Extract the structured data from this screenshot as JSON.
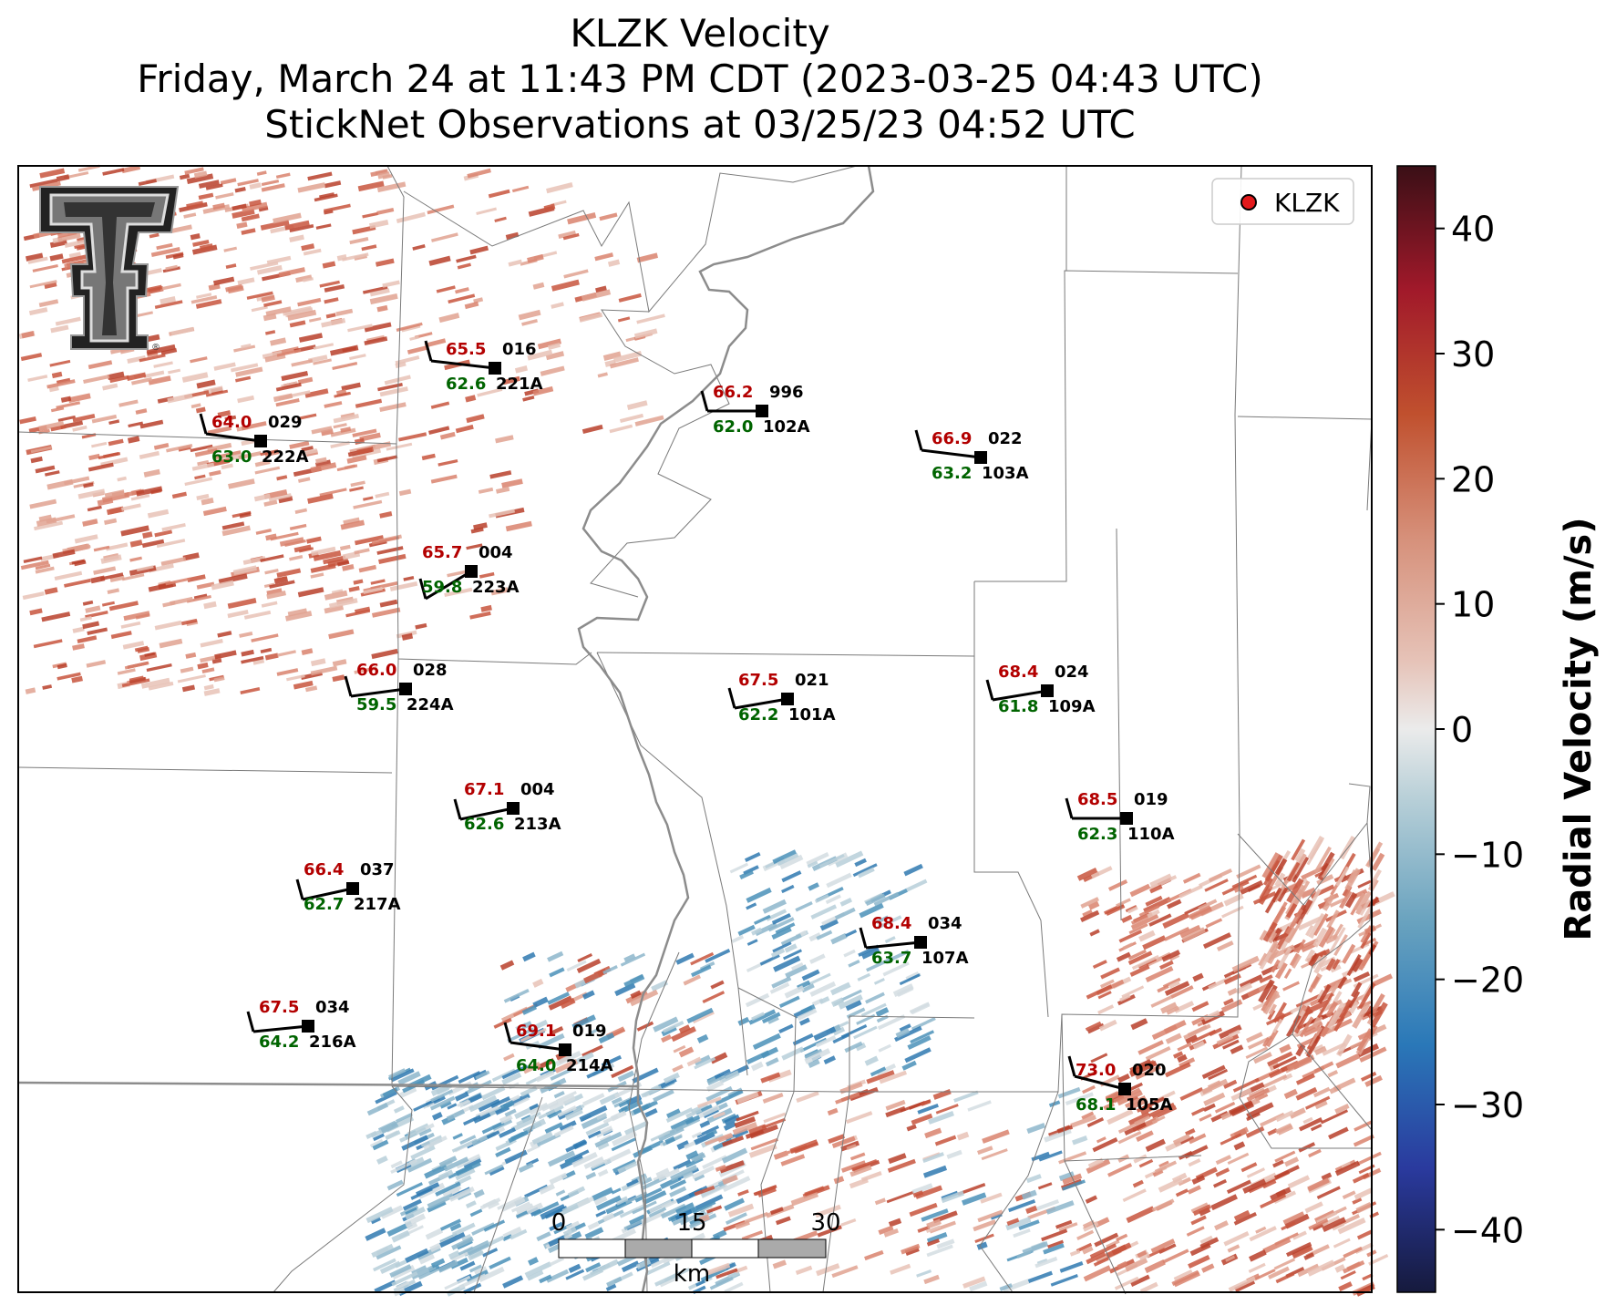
{
  "title": {
    "line1": "KLZK Velocity",
    "line2": "Friday, March 24 at 11:43 PM CDT (2023-03-25 04:43 UTC)",
    "line3": "StickNet Observations at 03/25/23 04:52 UTC"
  },
  "legend": {
    "label": "KLZK",
    "marker_color": "#e31a1c"
  },
  "colorbar": {
    "label": "Radial Velocity (m/s)",
    "ticks": [
      "40",
      "30",
      "20",
      "10",
      "0",
      "−10",
      "−20",
      "−30",
      "−40"
    ],
    "range": [
      -45,
      45
    ]
  },
  "scalebar": {
    "ticks": [
      "0",
      "15",
      "30"
    ],
    "unit": "km"
  },
  "logo": {
    "icon": "texas-tech-double-t-logo",
    "mark": "®"
  },
  "colors": {
    "temperature": "#b30000",
    "dewpoint": "#006400",
    "station": "#000000",
    "outbound": "#c8553d",
    "inbound": "#4a90b8"
  },
  "stations": [
    {
      "id": "221A",
      "temp": "65.5",
      "dew": "62.6",
      "pressure": "016"
    },
    {
      "id": "222A",
      "temp": "64.0",
      "dew": "63.0",
      "pressure": "029"
    },
    {
      "id": "102A",
      "temp": "66.2",
      "dew": "62.0",
      "pressure": "996"
    },
    {
      "id": "103A",
      "temp": "66.9",
      "dew": "63.2",
      "pressure": "022"
    },
    {
      "id": "223A",
      "temp": "65.7",
      "dew": "59.8",
      "pressure": "004"
    },
    {
      "id": "224A",
      "temp": "66.0",
      "dew": "59.5",
      "pressure": "028"
    },
    {
      "id": "101A",
      "temp": "67.5",
      "dew": "62.2",
      "pressure": "021"
    },
    {
      "id": "109A",
      "temp": "68.4",
      "dew": "61.8",
      "pressure": "024"
    },
    {
      "id": "213A",
      "temp": "67.1",
      "dew": "62.6",
      "pressure": "004"
    },
    {
      "id": "110A",
      "temp": "68.5",
      "dew": "62.3",
      "pressure": "019"
    },
    {
      "id": "217A",
      "temp": "66.4",
      "dew": "62.7",
      "pressure": "037"
    },
    {
      "id": "107A",
      "temp": "68.4",
      "dew": "63.7",
      "pressure": "034"
    },
    {
      "id": "216A",
      "temp": "67.5",
      "dew": "64.2",
      "pressure": "034"
    },
    {
      "id": "214A",
      "temp": "69.1",
      "dew": "64.0",
      "pressure": "019"
    },
    {
      "id": "105A",
      "temp": "73.0",
      "dew": "68.1",
      "pressure": "020"
    }
  ]
}
